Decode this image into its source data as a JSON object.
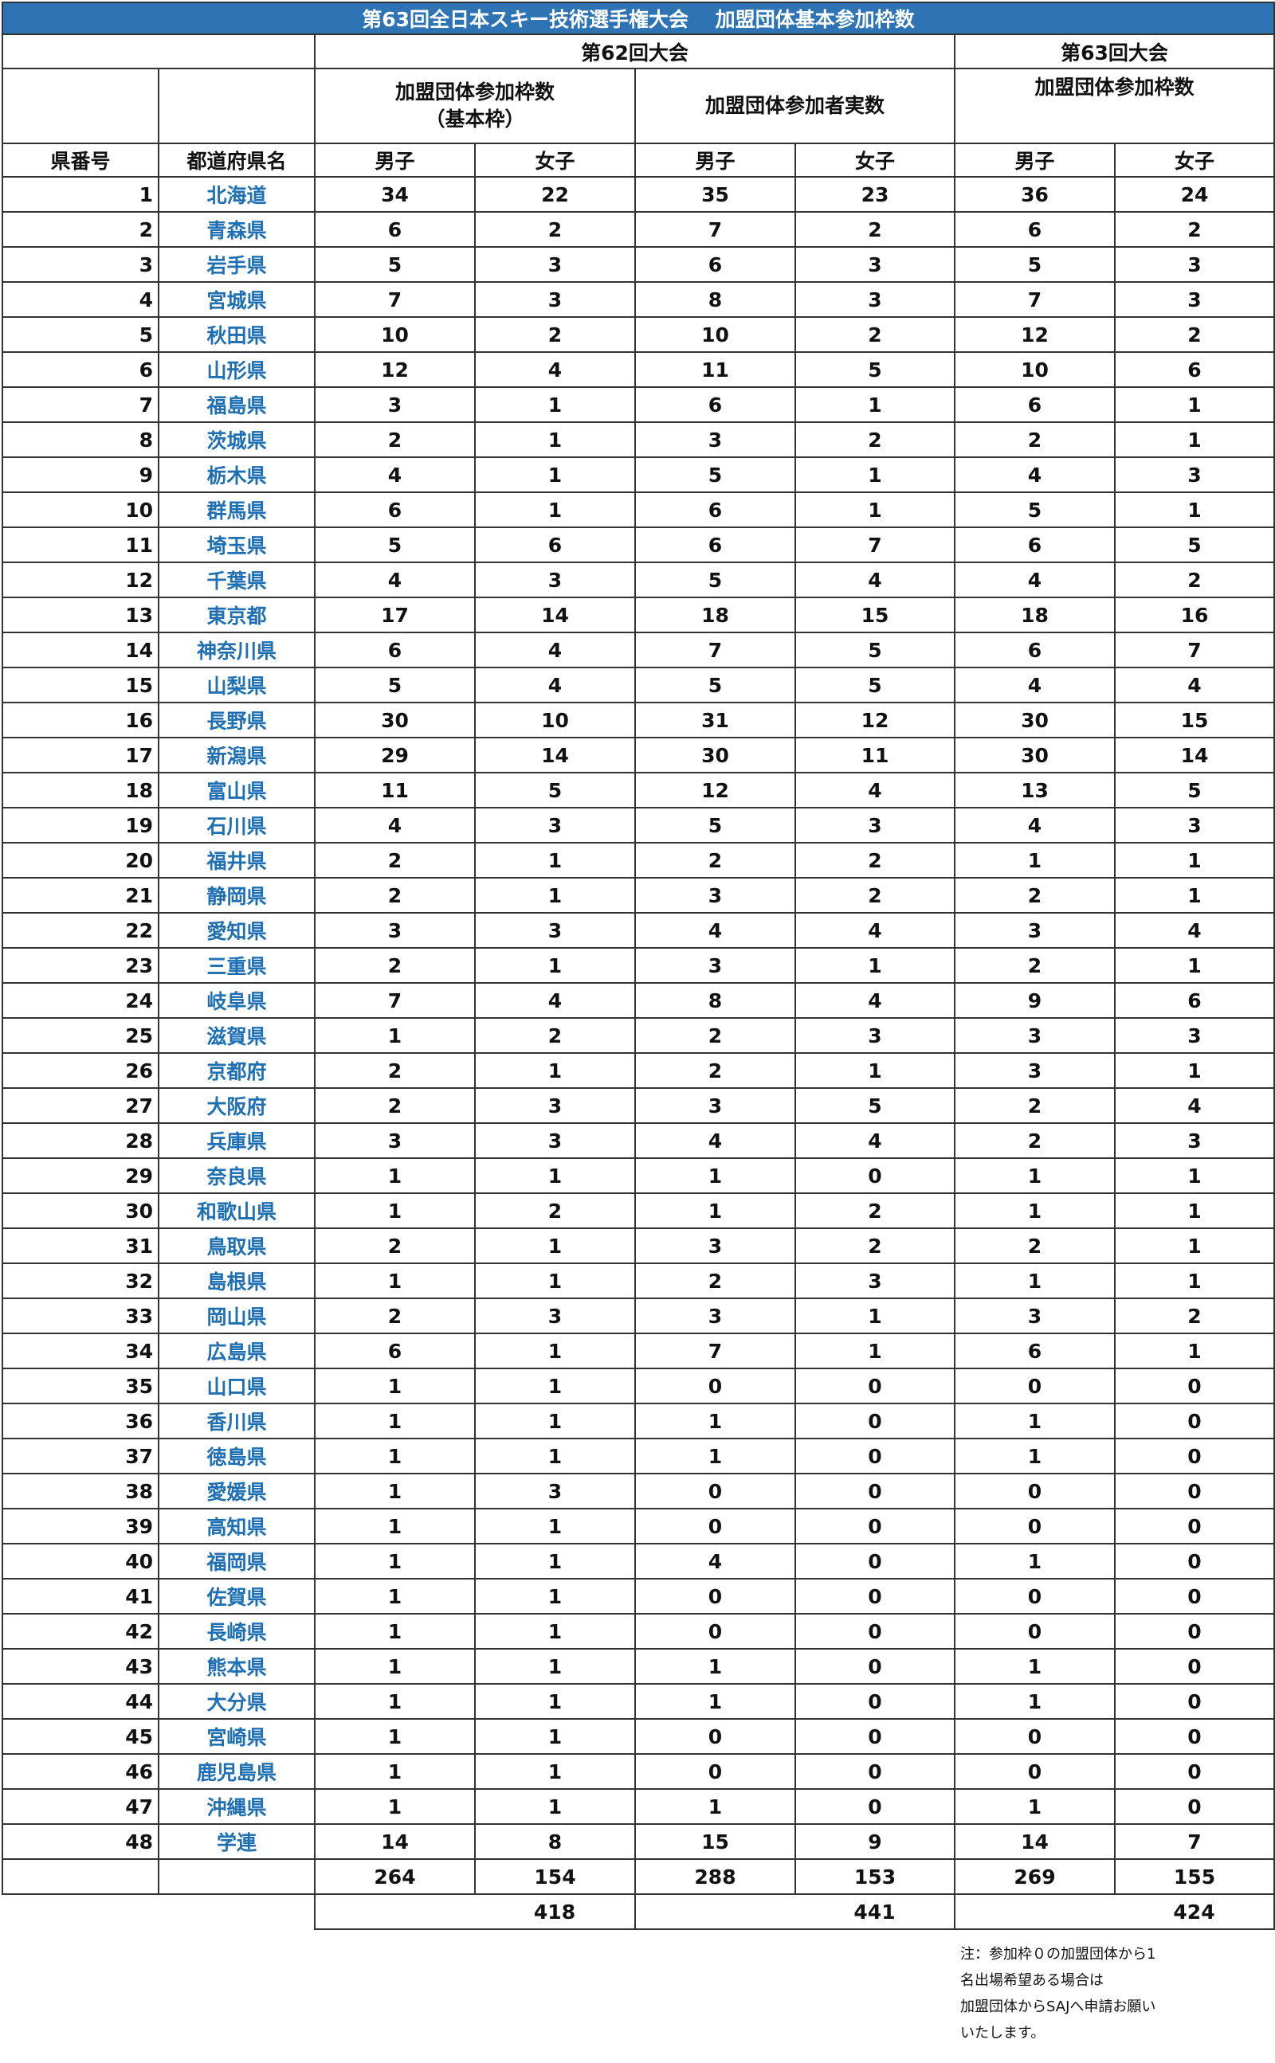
{
  "title": "第63回全日本スキー技術選手権大会　 加盟団体基本参加枠数",
  "header": {
    "t62": "第62回大会",
    "t63": "第63回大会",
    "quota_line1": "加盟団体参加枠数",
    "quota_line2": "（基本枠）",
    "actual": "加盟団体参加者実数",
    "quota63": "加盟団体参加枠数",
    "col_no": "県番号",
    "col_pref": "都道府県名",
    "male": "男子",
    "female": "女子"
  },
  "rows": [
    {
      "no": "1",
      "pref": "北海道",
      "q_m": "34",
      "q_f": "22",
      "a_m": "35",
      "a_f": "23",
      "n_m": "36",
      "n_f": "24"
    },
    {
      "no": "2",
      "pref": "青森県",
      "q_m": "6",
      "q_f": "2",
      "a_m": "7",
      "a_f": "2",
      "n_m": "6",
      "n_f": "2"
    },
    {
      "no": "3",
      "pref": "岩手県",
      "q_m": "5",
      "q_f": "3",
      "a_m": "6",
      "a_f": "3",
      "n_m": "5",
      "n_f": "3"
    },
    {
      "no": "4",
      "pref": "宮城県",
      "q_m": "7",
      "q_f": "3",
      "a_m": "8",
      "a_f": "3",
      "n_m": "7",
      "n_f": "3"
    },
    {
      "no": "5",
      "pref": "秋田県",
      "q_m": "10",
      "q_f": "2",
      "a_m": "10",
      "a_f": "2",
      "n_m": "12",
      "n_f": "2"
    },
    {
      "no": "6",
      "pref": "山形県",
      "q_m": "12",
      "q_f": "4",
      "a_m": "11",
      "a_f": "5",
      "n_m": "10",
      "n_f": "6"
    },
    {
      "no": "7",
      "pref": "福島県",
      "q_m": "3",
      "q_f": "1",
      "a_m": "6",
      "a_f": "1",
      "n_m": "6",
      "n_f": "1"
    },
    {
      "no": "8",
      "pref": "茨城県",
      "q_m": "2",
      "q_f": "1",
      "a_m": "3",
      "a_f": "2",
      "n_m": "2",
      "n_f": "1"
    },
    {
      "no": "9",
      "pref": "栃木県",
      "q_m": "4",
      "q_f": "1",
      "a_m": "5",
      "a_f": "1",
      "n_m": "4",
      "n_f": "3"
    },
    {
      "no": "10",
      "pref": "群馬県",
      "q_m": "6",
      "q_f": "1",
      "a_m": "6",
      "a_f": "1",
      "n_m": "5",
      "n_f": "1"
    },
    {
      "no": "11",
      "pref": "埼玉県",
      "q_m": "5",
      "q_f": "6",
      "a_m": "6",
      "a_f": "7",
      "n_m": "6",
      "n_f": "5"
    },
    {
      "no": "12",
      "pref": "千葉県",
      "q_m": "4",
      "q_f": "3",
      "a_m": "5",
      "a_f": "4",
      "n_m": "4",
      "n_f": "2"
    },
    {
      "no": "13",
      "pref": "東京都",
      "q_m": "17",
      "q_f": "14",
      "a_m": "18",
      "a_f": "15",
      "n_m": "18",
      "n_f": "16"
    },
    {
      "no": "14",
      "pref": "神奈川県",
      "q_m": "6",
      "q_f": "4",
      "a_m": "7",
      "a_f": "5",
      "n_m": "6",
      "n_f": "7"
    },
    {
      "no": "15",
      "pref": "山梨県",
      "q_m": "5",
      "q_f": "4",
      "a_m": "5",
      "a_f": "5",
      "n_m": "4",
      "n_f": "4"
    },
    {
      "no": "16",
      "pref": "長野県",
      "q_m": "30",
      "q_f": "10",
      "a_m": "31",
      "a_f": "12",
      "n_m": "30",
      "n_f": "15"
    },
    {
      "no": "17",
      "pref": "新潟県",
      "q_m": "29",
      "q_f": "14",
      "a_m": "30",
      "a_f": "11",
      "n_m": "30",
      "n_f": "14"
    },
    {
      "no": "18",
      "pref": "富山県",
      "q_m": "11",
      "q_f": "5",
      "a_m": "12",
      "a_f": "4",
      "n_m": "13",
      "n_f": "5"
    },
    {
      "no": "19",
      "pref": "石川県",
      "q_m": "4",
      "q_f": "3",
      "a_m": "5",
      "a_f": "3",
      "n_m": "4",
      "n_f": "3"
    },
    {
      "no": "20",
      "pref": "福井県",
      "q_m": "2",
      "q_f": "1",
      "a_m": "2",
      "a_f": "2",
      "n_m": "1",
      "n_f": "1"
    },
    {
      "no": "21",
      "pref": "静岡県",
      "q_m": "2",
      "q_f": "1",
      "a_m": "3",
      "a_f": "2",
      "n_m": "2",
      "n_f": "1"
    },
    {
      "no": "22",
      "pref": "愛知県",
      "q_m": "3",
      "q_f": "3",
      "a_m": "4",
      "a_f": "4",
      "n_m": "3",
      "n_f": "4"
    },
    {
      "no": "23",
      "pref": "三重県",
      "q_m": "2",
      "q_f": "1",
      "a_m": "3",
      "a_f": "1",
      "n_m": "2",
      "n_f": "1"
    },
    {
      "no": "24",
      "pref": "岐阜県",
      "q_m": "7",
      "q_f": "4",
      "a_m": "8",
      "a_f": "4",
      "n_m": "9",
      "n_f": "6"
    },
    {
      "no": "25",
      "pref": "滋賀県",
      "q_m": "1",
      "q_f": "2",
      "a_m": "2",
      "a_f": "3",
      "n_m": "3",
      "n_f": "3"
    },
    {
      "no": "26",
      "pref": "京都府",
      "q_m": "2",
      "q_f": "1",
      "a_m": "2",
      "a_f": "1",
      "n_m": "3",
      "n_f": "1"
    },
    {
      "no": "27",
      "pref": "大阪府",
      "q_m": "2",
      "q_f": "3",
      "a_m": "3",
      "a_f": "5",
      "n_m": "2",
      "n_f": "4"
    },
    {
      "no": "28",
      "pref": "兵庫県",
      "q_m": "3",
      "q_f": "3",
      "a_m": "4",
      "a_f": "4",
      "n_m": "2",
      "n_f": "3"
    },
    {
      "no": "29",
      "pref": "奈良県",
      "q_m": "1",
      "q_f": "1",
      "a_m": "1",
      "a_f": "0",
      "n_m": "1",
      "n_f": "1"
    },
    {
      "no": "30",
      "pref": "和歌山県",
      "q_m": "1",
      "q_f": "2",
      "a_m": "1",
      "a_f": "2",
      "n_m": "1",
      "n_f": "1"
    },
    {
      "no": "31",
      "pref": "鳥取県",
      "q_m": "2",
      "q_f": "1",
      "a_m": "3",
      "a_f": "2",
      "n_m": "2",
      "n_f": "1"
    },
    {
      "no": "32",
      "pref": "島根県",
      "q_m": "1",
      "q_f": "1",
      "a_m": "2",
      "a_f": "3",
      "n_m": "1",
      "n_f": "1"
    },
    {
      "no": "33",
      "pref": "岡山県",
      "q_m": "2",
      "q_f": "3",
      "a_m": "3",
      "a_f": "1",
      "n_m": "3",
      "n_f": "2"
    },
    {
      "no": "34",
      "pref": "広島県",
      "q_m": "6",
      "q_f": "1",
      "a_m": "7",
      "a_f": "1",
      "n_m": "6",
      "n_f": "1"
    },
    {
      "no": "35",
      "pref": "山口県",
      "q_m": "1",
      "q_f": "1",
      "a_m": "0",
      "a_f": "0",
      "n_m": "0",
      "n_f": "0"
    },
    {
      "no": "36",
      "pref": "香川県",
      "q_m": "1",
      "q_f": "1",
      "a_m": "1",
      "a_f": "0",
      "n_m": "1",
      "n_f": "0"
    },
    {
      "no": "37",
      "pref": "徳島県",
      "q_m": "1",
      "q_f": "1",
      "a_m": "1",
      "a_f": "0",
      "n_m": "1",
      "n_f": "0"
    },
    {
      "no": "38",
      "pref": "愛媛県",
      "q_m": "1",
      "q_f": "3",
      "a_m": "0",
      "a_f": "0",
      "n_m": "0",
      "n_f": "0"
    },
    {
      "no": "39",
      "pref": "高知県",
      "q_m": "1",
      "q_f": "1",
      "a_m": "0",
      "a_f": "0",
      "n_m": "0",
      "n_f": "0"
    },
    {
      "no": "40",
      "pref": "福岡県",
      "q_m": "1",
      "q_f": "1",
      "a_m": "4",
      "a_f": "0",
      "n_m": "1",
      "n_f": "0"
    },
    {
      "no": "41",
      "pref": "佐賀県",
      "q_m": "1",
      "q_f": "1",
      "a_m": "0",
      "a_f": "0",
      "n_m": "0",
      "n_f": "0"
    },
    {
      "no": "42",
      "pref": "長崎県",
      "q_m": "1",
      "q_f": "1",
      "a_m": "0",
      "a_f": "0",
      "n_m": "0",
      "n_f": "0"
    },
    {
      "no": "43",
      "pref": "熊本県",
      "q_m": "1",
      "q_f": "1",
      "a_m": "1",
      "a_f": "0",
      "n_m": "1",
      "n_f": "0"
    },
    {
      "no": "44",
      "pref": "大分県",
      "q_m": "1",
      "q_f": "1",
      "a_m": "1",
      "a_f": "0",
      "n_m": "1",
      "n_f": "0"
    },
    {
      "no": "45",
      "pref": "宮崎県",
      "q_m": "1",
      "q_f": "1",
      "a_m": "0",
      "a_f": "0",
      "n_m": "0",
      "n_f": "0"
    },
    {
      "no": "46",
      "pref": "鹿児島県",
      "q_m": "1",
      "q_f": "1",
      "a_m": "0",
      "a_f": "0",
      "n_m": "0",
      "n_f": "0"
    },
    {
      "no": "47",
      "pref": "沖縄県",
      "q_m": "1",
      "q_f": "1",
      "a_m": "1",
      "a_f": "0",
      "n_m": "1",
      "n_f": "0"
    },
    {
      "no": "48",
      "pref": "学連",
      "q_m": "14",
      "q_f": "8",
      "a_m": "15",
      "a_f": "9",
      "n_m": "14",
      "n_f": "7"
    }
  ],
  "totals": {
    "q_m": "264",
    "q_f": "154",
    "a_m": "288",
    "a_f": "153",
    "n_m": "269",
    "n_f": "155",
    "q_all": "418",
    "a_all": "441",
    "n_all": "424"
  },
  "note": [
    "注：参加枠０の加盟団体から1",
    "名出場希望ある場合は",
    "加盟団体からSAJへ申請お願い",
    "いたします。"
  ]
}
